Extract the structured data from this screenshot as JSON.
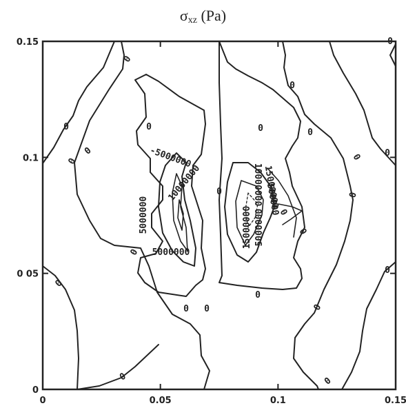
{
  "title": {
    "base": "σ",
    "sub": "xz",
    "unit": "(Pa)"
  },
  "chart_data": {
    "type": "contour",
    "title": "σxz (Pa)",
    "xlabel": "",
    "ylabel": "",
    "xlim": [
      0,
      0.15
    ],
    "ylim": [
      0,
      0.15
    ],
    "xticks": [
      "0",
      "0.05",
      "0.1",
      "0.15"
    ],
    "yticks": [
      "0",
      "0 05",
      "0.1",
      "0.15"
    ],
    "contour_labels": [
      "0",
      "0",
      "0",
      "0",
      "0",
      "0",
      "0",
      "0",
      "0",
      "0",
      "0",
      "0",
      "0",
      "0",
      "0",
      "0",
      "0",
      "0",
      "0",
      "0",
      "0",
      "0",
      "0",
      "0",
      "5000000",
      "5000000",
      "5000000",
      "-5000000",
      "10000000",
      "10000000",
      "15000000",
      "15000000",
      "500000"
    ],
    "contour_levels": [
      -5000000,
      0,
      5000000,
      10000000,
      15000000
    ],
    "grid": false
  }
}
